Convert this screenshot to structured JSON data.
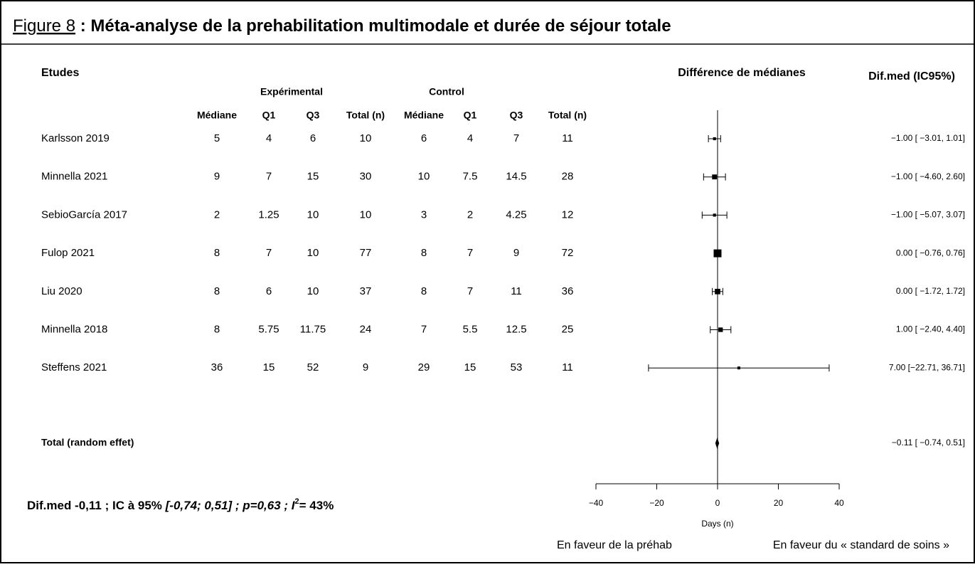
{
  "figure_label": "Figure 8",
  "title": " : Méta-analyse de la prehabilitation multimodale et durée de séjour totale",
  "chart_data": {
    "type": "forest",
    "studies_header": "Etudes",
    "group_headers": [
      "Expérimental",
      "Control"
    ],
    "column_headers": [
      "Médiane",
      "Q1",
      "Q3",
      "Total (n)",
      "Médiane",
      "Q1",
      "Q3",
      "Total (n)"
    ],
    "categories": [
      "Karlsson 2019",
      "Minnella 2021",
      "SebioGarcía 2017",
      "Fulop 2021",
      "Liu 2020",
      "Minnella 2018",
      "Steffens 2021"
    ],
    "rows": [
      [
        5,
        4,
        6,
        10,
        6,
        4,
        7,
        11
      ],
      [
        9,
        7,
        15,
        30,
        10,
        7.5,
        14.5,
        28
      ],
      [
        2,
        1.25,
        10,
        10,
        3,
        2,
        4.25,
        12
      ],
      [
        8,
        7,
        10,
        77,
        8,
        7,
        9,
        72
      ],
      [
        8,
        6,
        10,
        37,
        8,
        7,
        11,
        36
      ],
      [
        8,
        5.75,
        11.75,
        24,
        7,
        5.5,
        12.5,
        25
      ],
      [
        36,
        15,
        52,
        9,
        29,
        15,
        53,
        11
      ]
    ],
    "plot_title": "Différence de médianes",
    "ci_header": "Dif.med (IC95%)",
    "values": [
      -1,
      -1,
      -1,
      0,
      0,
      1,
      7
    ],
    "ci_lower": [
      -3.01,
      -4.6,
      -5.07,
      -0.76,
      -1.72,
      -2.4,
      -22.71
    ],
    "ci_upper": [
      1.01,
      2.6,
      3.07,
      0.76,
      1.72,
      4.4,
      36.71
    ],
    "value_labels": [
      "−1.00 [ −3.01,  1.01]",
      "−1.00 [ −4.60,  2.60]",
      "−1.00 [ −5.07,  3.07]",
      "0.00 [ −0.76,  0.76]",
      "0.00 [ −1.72,  1.72]",
      "1.00 [ −2.40,  4.40]",
      "7.00 [−22.71, 36.71]"
    ],
    "total": {
      "name": "Total (random effet)",
      "value": -0.11,
      "ci_lower": -0.74,
      "ci_upper": 0.51,
      "value_label": "−0.11 [ −0.74,  0.51]"
    },
    "xlim": [
      -40,
      40
    ],
    "xticks": [
      {
        "value": -40,
        "label": "−40"
      },
      {
        "value": -20,
        "label": "−20"
      },
      0,
      20,
      40
    ],
    "xlabel": "Days (n)",
    "left_note": "En faveur de la préhab",
    "right_note": "En faveur du « standard de soins »",
    "summary": [
      "Dif.med   -0,11 ; IC à 95% ",
      "[-0,74; 0,51] ; p=0,63 ; ",
      "I",
      "2",
      "= 43%"
    ]
  }
}
